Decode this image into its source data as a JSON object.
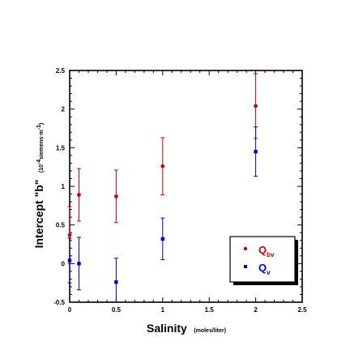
{
  "chart_data": {
    "type": "scatter",
    "xlabel": {
      "main": "Salinity",
      "unit": "(moles/liter)"
    },
    "ylabel": {
      "main": "Intercept \"b\"",
      "unit_pre": "(10",
      "unit_exp": "-4",
      "unit_mid": "siemens·m",
      "unit_exp2": "-1",
      "unit_post": ")"
    },
    "xlim": [
      0,
      2.5
    ],
    "ylim": [
      -0.5,
      2.5
    ],
    "xticks": [
      "0",
      "0.5",
      "1",
      "1.5",
      "2",
      "2.5"
    ],
    "yticks": [
      "-0.5",
      "0",
      "0.5",
      "1",
      "1.5",
      "2",
      "2.5"
    ],
    "grid": false,
    "legend_position": "bottom-right",
    "series": [
      {
        "name": "Q",
        "name_sub": "bv",
        "color": "#cc0000",
        "marker": "circle",
        "points": [
          {
            "x": 0.0,
            "y": 0.37,
            "err": 0.37
          },
          {
            "x": 0.1,
            "y": 0.89,
            "err": 0.34
          },
          {
            "x": 0.5,
            "y": 0.87,
            "err": 0.34
          },
          {
            "x": 1.0,
            "y": 1.26,
            "err": 0.37
          },
          {
            "x": 2.0,
            "y": 2.04,
            "err": 0.42
          }
        ]
      },
      {
        "name": "Q",
        "name_sub": "v",
        "color": "#0000cc",
        "marker": "square",
        "points": [
          {
            "x": 0.0,
            "y": 0.04,
            "err": 0.29
          },
          {
            "x": 0.1,
            "y": 0.0,
            "err": 0.34
          },
          {
            "x": 0.5,
            "y": -0.24,
            "err": 0.31
          },
          {
            "x": 1.0,
            "y": 0.32,
            "err": 0.27
          },
          {
            "x": 2.0,
            "y": 1.45,
            "err": 0.32
          }
        ]
      }
    ]
  }
}
